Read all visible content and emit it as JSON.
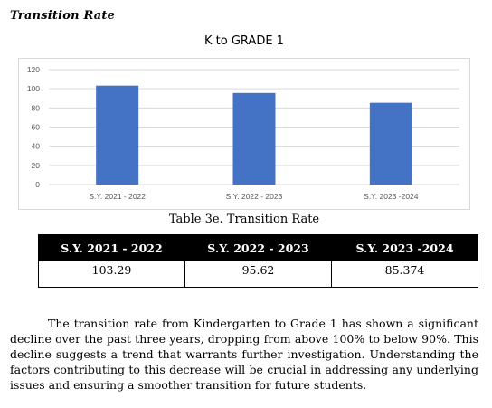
{
  "section_title": "Transition Rate",
  "chart_data": {
    "type": "bar",
    "title": "K to GRADE 1",
    "categories": [
      "S.Y. 2021 - 2022",
      "S.Y. 2022 - 2023",
      "S.Y. 2023 -2024"
    ],
    "values": [
      103.29,
      95.62,
      85.374
    ],
    "ylim": [
      0,
      120
    ],
    "yticks": [
      0,
      20,
      40,
      60,
      80,
      100,
      120
    ],
    "grid": true,
    "legend": "none",
    "bar_color": "#4472C4"
  },
  "caption": "Table 3e. Transition Rate",
  "table": {
    "headers": [
      "S.Y. 2021 - 2022",
      "S.Y. 2022 - 2023",
      "S.Y. 2023 -2024"
    ],
    "rows": [
      [
        "103.29",
        "95.62",
        "85.374"
      ]
    ]
  },
  "paragraph": "The transition rate from Kindergarten to Grade 1 has shown a significant decline over the past three years, dropping from above 100% to below 90%. This decline suggests a trend that warrants further investigation. Understanding the factors contributing to this decrease will be crucial in addressing any underlying issues and ensuring a smoother transition for future students."
}
